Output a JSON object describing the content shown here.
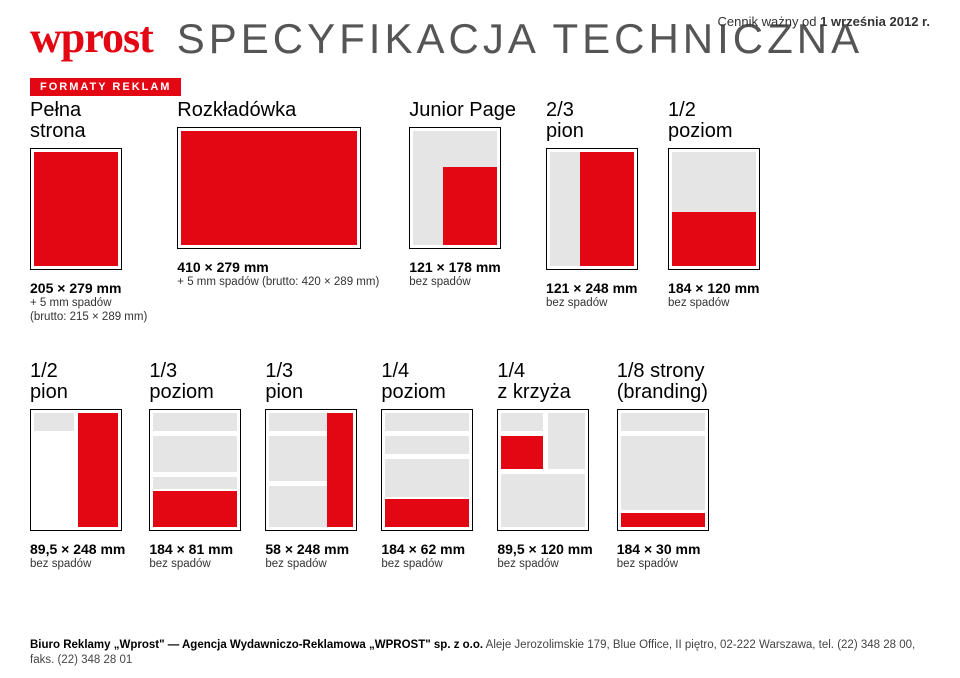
{
  "brand": "wprost",
  "title": "SPECYFIKACJA TECHNICZNA",
  "valid_from_prefix": "Cennik ważny od ",
  "valid_from_bold": "1 września 2012 r.",
  "section_label": "FORMATY REKLAM",
  "colors": {
    "accent": "#e30613",
    "page_bg": "#e5e5e5"
  },
  "row1": [
    {
      "label": "Pełna\nstrona",
      "dims": "205 × 279 mm",
      "sub1": "+ 5 mm spadów",
      "sub2": "(brutto: 215 × 289 mm)"
    },
    {
      "label": "Rozkładówka",
      "dims": "410 × 279 mm",
      "sub1": "+ 5 mm spadów (brutto: 420 × 289 mm)",
      "sub2": ""
    },
    {
      "label": "Junior Page",
      "dims": "121 × 178 mm",
      "sub1": "bez spadów",
      "sub2": ""
    },
    {
      "label": "2/3\npion",
      "dims": "121 × 248 mm",
      "sub1": "bez spadów",
      "sub2": ""
    },
    {
      "label": "1/2\npoziom",
      "dims": "184 × 120 mm",
      "sub1": "bez spadów",
      "sub2": ""
    }
  ],
  "row2": [
    {
      "label": "1/2\npion",
      "dims": "89,5 × 248 mm",
      "sub1": "bez spadów"
    },
    {
      "label": "1/3\npoziom",
      "dims": "184 × 81 mm",
      "sub1": "bez spadów"
    },
    {
      "label": "1/3\npion",
      "dims": "58 × 248 mm",
      "sub1": "bez spadów"
    },
    {
      "label": "1/4\npoziom",
      "dims": "184 × 62 mm",
      "sub1": "bez spadów"
    },
    {
      "label": "1/4\nz krzyża",
      "dims": "89,5 × 120 mm",
      "sub1": "bez spadów"
    },
    {
      "label": "1/8 strony\n(branding)",
      "dims": "184 × 30 mm",
      "sub1": "bez spadów"
    }
  ],
  "footer": {
    "bold": "Biuro Reklamy „Wprost\" — Agencja Wydawniczo-Reklamowa „WPROST\" sp. z o.o.",
    "rest": " Aleje Jerozolimskie 179, Blue Office, II piętro, 02-222 Warszawa, tel. (22) 348 28 00, faks. (22) 348 28 01"
  }
}
